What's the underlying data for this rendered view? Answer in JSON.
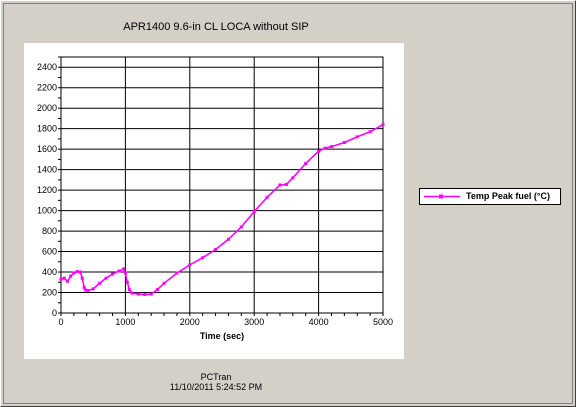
{
  "chart_data": {
    "type": "line",
    "title": "APR1400 9.6-in CL LOCA without SIP",
    "xlabel": "Time (sec)",
    "ylabel": "",
    "xlim": [
      0,
      5000
    ],
    "ylim": [
      0,
      2500
    ],
    "x_ticks": [
      0,
      1000,
      2000,
      3000,
      4000,
      5000
    ],
    "x_tick_labels": [
      "0",
      "1000",
      "2000",
      "3000",
      "4000",
      "5000"
    ],
    "y_ticks": [
      0,
      200,
      400,
      600,
      800,
      1000,
      1200,
      1400,
      1600,
      1800,
      2000,
      2200,
      2400
    ],
    "y_tick_labels": [
      "0",
      "200",
      "400",
      "600",
      "800",
      "1000",
      "1200",
      "1400",
      "1600",
      "1800",
      "2000",
      "2200",
      "2400"
    ],
    "grid": true,
    "legend_position": "right",
    "series": [
      {
        "name": "Temp Peak fuel (°C)",
        "color": "#ff00ff",
        "x": [
          0,
          50,
          100,
          150,
          200,
          250,
          300,
          330,
          360,
          380,
          420,
          500,
          600,
          700,
          800,
          900,
          970,
          1000,
          1030,
          1060,
          1100,
          1200,
          1300,
          1400,
          1500,
          1600,
          1800,
          2000,
          2200,
          2400,
          2600,
          2800,
          3000,
          3200,
          3400,
          3500,
          3600,
          3800,
          4000,
          4100,
          4200,
          4400,
          4600,
          4800,
          5000
        ],
        "y": [
          330,
          340,
          310,
          360,
          390,
          405,
          400,
          340,
          250,
          225,
          220,
          235,
          290,
          340,
          380,
          410,
          430,
          390,
          300,
          230,
          195,
          185,
          180,
          185,
          230,
          290,
          390,
          470,
          540,
          620,
          720,
          840,
          990,
          1130,
          1250,
          1255,
          1320,
          1460,
          1580,
          1610,
          1625,
          1665,
          1720,
          1770,
          1840
        ]
      }
    ]
  },
  "legend": {
    "label": "Temp Peak fuel (°C)"
  },
  "footer": {
    "app_name": "PCTran",
    "timestamp": "11/10/2011 5:24:52 PM"
  }
}
